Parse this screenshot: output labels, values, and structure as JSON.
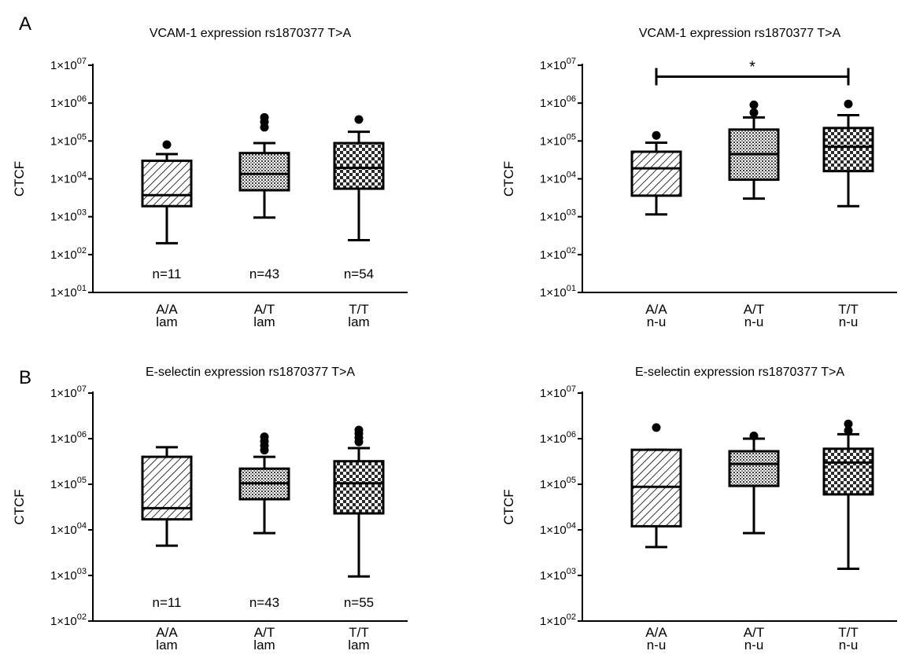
{
  "panel_labels": [
    "A",
    "B"
  ],
  "chart_data": [
    {
      "type": "box",
      "panel": "A",
      "title": "VCAM-1 expression rs1870377 T>A",
      "ylabel": "CTCF",
      "yscale": "log",
      "ylim": [
        10,
        10000000
      ],
      "yticks": [
        {
          "value": 10,
          "label": "1×10",
          "exp": "01"
        },
        {
          "value": 100,
          "label": "1×10",
          "exp": "02"
        },
        {
          "value": 1000,
          "label": "1×10",
          "exp": "03"
        },
        {
          "value": 10000,
          "label": "1×10",
          "exp": "04"
        },
        {
          "value": 100000,
          "label": "1×10",
          "exp": "05"
        },
        {
          "value": 1000000,
          "label": "1×10",
          "exp": "06"
        },
        {
          "value": 10000000,
          "label": "1×10",
          "exp": "07"
        }
      ],
      "categories": [
        [
          "A/A",
          "lam"
        ],
        [
          "A/T",
          "lam"
        ],
        [
          "T/T",
          "lam"
        ]
      ],
      "series": [
        {
          "category": "A/A lam",
          "pattern": "hatch",
          "whisker_low": 200,
          "q1": 1900,
          "median": 3700,
          "q3": 30000,
          "whisker_high": 45000,
          "outliers": [
            80000
          ]
        },
        {
          "category": "A/T lam",
          "pattern": "grid-fine",
          "whisker_low": 950,
          "q1": 5000,
          "median": 13500,
          "q3": 48000,
          "whisker_high": 88000,
          "outliers": [
            230000,
            320000,
            420000
          ]
        },
        {
          "category": "T/T lam",
          "pattern": "checker",
          "whisker_low": 240,
          "q1": 5500,
          "median": 19500,
          "q3": 88000,
          "whisker_high": 175000,
          "outliers": [
            370000
          ]
        }
      ],
      "n_labels": [
        "n=11",
        "n=43",
        "n=54"
      ],
      "significance": null
    },
    {
      "type": "box",
      "panel": "A",
      "title": "VCAM-1 expression rs1870377 T>A",
      "ylabel": "CTCF",
      "yscale": "log",
      "ylim": [
        10,
        10000000
      ],
      "yticks": [
        {
          "value": 10,
          "label": "1×10",
          "exp": "01"
        },
        {
          "value": 100,
          "label": "1×10",
          "exp": "02"
        },
        {
          "value": 1000,
          "label": "1×10",
          "exp": "03"
        },
        {
          "value": 10000,
          "label": "1×10",
          "exp": "04"
        },
        {
          "value": 100000,
          "label": "1×10",
          "exp": "05"
        },
        {
          "value": 1000000,
          "label": "1×10",
          "exp": "06"
        },
        {
          "value": 10000000,
          "label": "1×10",
          "exp": "07"
        }
      ],
      "categories": [
        [
          "A/A",
          "n-u"
        ],
        [
          "A/T",
          "n-u"
        ],
        [
          "T/T",
          "n-u"
        ]
      ],
      "series": [
        {
          "category": "A/A n-u",
          "pattern": "hatch",
          "whisker_low": 1150,
          "q1": 3600,
          "median": 19000,
          "q3": 52000,
          "whisker_high": 90000,
          "outliers": [
            140000
          ]
        },
        {
          "category": "A/T n-u",
          "pattern": "grid-fine",
          "whisker_low": 3000,
          "q1": 9500,
          "median": 45000,
          "q3": 200000,
          "whisker_high": 420000,
          "outliers": [
            560000,
            900000
          ]
        },
        {
          "category": "T/T n-u",
          "pattern": "checker",
          "whisker_low": 1900,
          "q1": 16000,
          "median": 70000,
          "q3": 220000,
          "whisker_high": 480000,
          "outliers": [
            950000
          ]
        }
      ],
      "n_labels": [],
      "significance": {
        "from": 0,
        "to": 2,
        "y": 5000000,
        "label": "*"
      }
    },
    {
      "type": "box",
      "panel": "B",
      "title": "E-selectin expression rs1870377 T>A",
      "ylabel": "CTCF",
      "yscale": "log",
      "ylim": [
        100,
        10000000
      ],
      "yticks": [
        {
          "value": 100,
          "label": "1×10",
          "exp": "02"
        },
        {
          "value": 1000,
          "label": "1×10",
          "exp": "03"
        },
        {
          "value": 10000,
          "label": "1×10",
          "exp": "04"
        },
        {
          "value": 100000,
          "label": "1×10",
          "exp": "05"
        },
        {
          "value": 1000000,
          "label": "1×10",
          "exp": "06"
        },
        {
          "value": 10000000,
          "label": "1×10",
          "exp": "07"
        }
      ],
      "categories": [
        [
          "A/A",
          "lam"
        ],
        [
          "A/T",
          "lam"
        ],
        [
          "T/T",
          "lam"
        ]
      ],
      "series": [
        {
          "category": "A/A lam",
          "pattern": "hatch",
          "whisker_low": 4500,
          "q1": 17000,
          "median": 30000,
          "q3": 400000,
          "whisker_high": 650000,
          "outliers": []
        },
        {
          "category": "A/T lam",
          "pattern": "grid-fine",
          "whisker_low": 8500,
          "q1": 47000,
          "median": 105000,
          "q3": 220000,
          "whisker_high": 400000,
          "outliers": [
            560000,
            700000,
            880000,
            1100000
          ]
        },
        {
          "category": "T/T lam",
          "pattern": "checker",
          "whisker_low": 950,
          "q1": 23000,
          "median": 105000,
          "q3": 320000,
          "whisker_high": 620000,
          "outliers": [
            850000,
            1050000,
            1300000,
            1550000
          ]
        }
      ],
      "n_labels": [
        "n=11",
        "n=43",
        "n=55"
      ],
      "significance": null
    },
    {
      "type": "box",
      "panel": "B",
      "title": "E-selectin expression rs1870377 T>A",
      "ylabel": "CTCF",
      "yscale": "log",
      "ylim": [
        100,
        10000000
      ],
      "yticks": [
        {
          "value": 100,
          "label": "1×10",
          "exp": "02"
        },
        {
          "value": 1000,
          "label": "1×10",
          "exp": "03"
        },
        {
          "value": 10000,
          "label": "1×10",
          "exp": "04"
        },
        {
          "value": 100000,
          "label": "1×10",
          "exp": "05"
        },
        {
          "value": 1000000,
          "label": "1×10",
          "exp": "06"
        },
        {
          "value": 10000000,
          "label": "1×10",
          "exp": "07"
        }
      ],
      "categories": [
        [
          "A/A",
          "n-u"
        ],
        [
          "A/T",
          "n-u"
        ],
        [
          "T/T",
          "n-u"
        ]
      ],
      "series": [
        {
          "category": "A/A n-u",
          "pattern": "hatch",
          "whisker_low": 4200,
          "q1": 12000,
          "median": 88000,
          "q3": 570000,
          "whisker_high": 570000,
          "outliers": [
            1750000
          ]
        },
        {
          "category": "A/T n-u",
          "pattern": "grid-fine",
          "whisker_low": 8500,
          "q1": 92000,
          "median": 280000,
          "q3": 530000,
          "whisker_high": 1000000,
          "outliers": [
            1150000
          ]
        },
        {
          "category": "T/T n-u",
          "pattern": "checker",
          "whisker_low": 1400,
          "q1": 60000,
          "median": 300000,
          "q3": 600000,
          "whisker_high": 1250000,
          "outliers": [
            1500000,
            2100000
          ]
        }
      ],
      "n_labels": [],
      "significance": null
    }
  ]
}
